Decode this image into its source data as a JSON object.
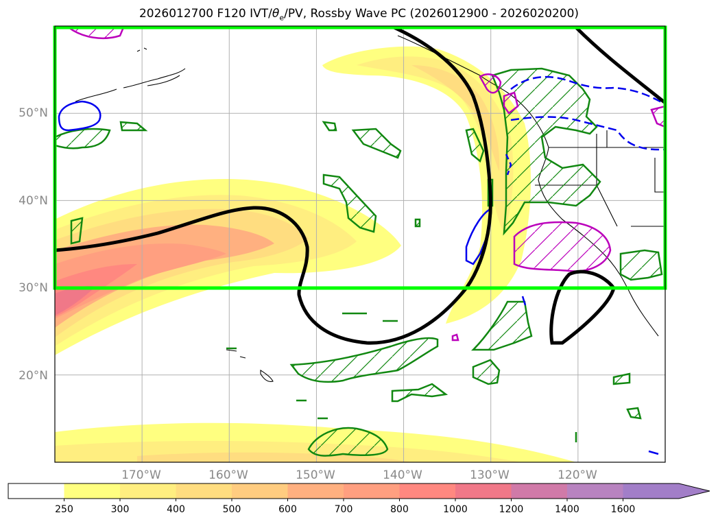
{
  "title": {
    "prefix": "2026012700 F120 IVT/",
    "theta": "θ",
    "theta_sub": "e",
    "suffix": "/PV, Rossby Wave PC (2026012900 - 2026020200)"
  },
  "map": {
    "lon_range": [
      -180,
      -110
    ],
    "lat_range": [
      10,
      60
    ],
    "lat_ticks": [
      {
        "value": 50,
        "label": "50°N"
      },
      {
        "value": 40,
        "label": "40°N"
      },
      {
        "value": 30,
        "label": "30°N"
      },
      {
        "value": 20,
        "label": "20°N"
      }
    ],
    "lon_ticks": [
      {
        "value": -170,
        "label": "170°W"
      },
      {
        "value": -160,
        "label": "160°W"
      },
      {
        "value": -150,
        "label": "150°W"
      },
      {
        "value": -140,
        "label": "140°W"
      },
      {
        "value": -130,
        "label": "130°W"
      },
      {
        "value": -120,
        "label": "120°W"
      }
    ],
    "highlight_box": {
      "lon": [
        -180,
        -110
      ],
      "lat": [
        30,
        60
      ],
      "color": "#00ff00"
    },
    "colors": {
      "contour_black": "#000000",
      "contour_green": "#118811",
      "contour_magenta": "#bb00bb",
      "contour_blue": "#0000ee",
      "grid": "#b0b0b0"
    }
  },
  "colorbar": {
    "ticks": [
      "250",
      "300",
      "400",
      "500",
      "600",
      "700",
      "800",
      "1000",
      "1200",
      "1400",
      "1600"
    ],
    "colors": [
      "#ffffff",
      "#ffff80",
      "#ffee80",
      "#ffdd80",
      "#ffcc80",
      "#ffb080",
      "#ff9f80",
      "#ff8880",
      "#f07888",
      "#d07aa8",
      "#b883c0",
      "#a27ec8"
    ]
  }
}
